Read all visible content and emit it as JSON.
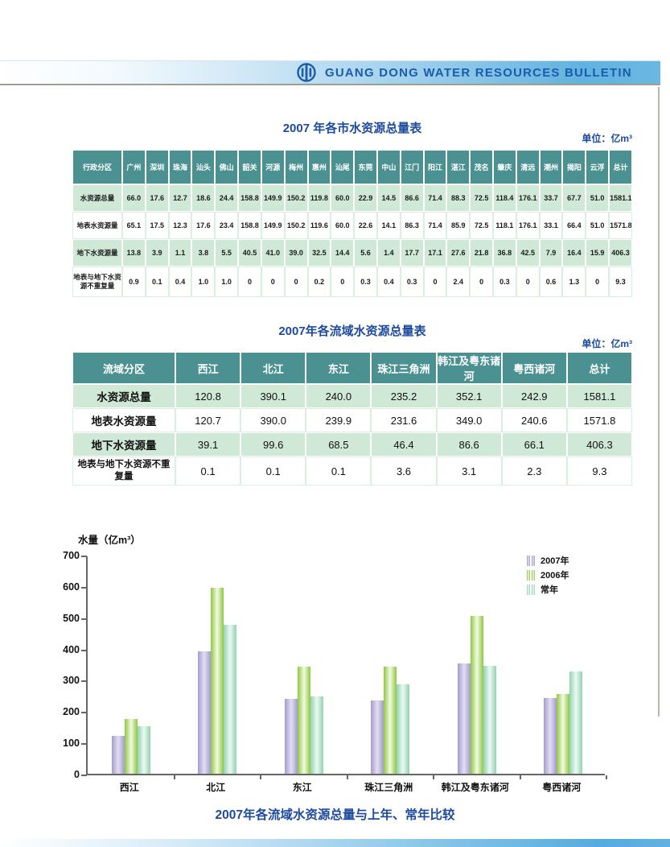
{
  "banner": {
    "title": "GUANG DONG WATER RESOURCES BULLETIN",
    "logo_icon": "water-emblem-icon",
    "accent_color": "#1a5cab"
  },
  "city_table": {
    "title": "2007 年各市水资源总量表",
    "unit": "单位：亿m³",
    "corner_header": "行政分区",
    "header_bg": "#4b9191",
    "row_alt_bg": "#d0e9d7",
    "columns": [
      "广州",
      "深圳",
      "珠海",
      "汕头",
      "佛山",
      "韶关",
      "河源",
      "梅州",
      "惠州",
      "汕尾",
      "东莞",
      "中山",
      "江门",
      "阳江",
      "湛江",
      "茂名",
      "肇庆",
      "清远",
      "潮州",
      "揭阳",
      "云浮",
      "总计"
    ],
    "rows": [
      {
        "label": "水资源总量",
        "values": [
          "66.0",
          "17.6",
          "12.7",
          "18.6",
          "24.4",
          "158.8",
          "149.9",
          "150.2",
          "119.8",
          "60.0",
          "22.9",
          "14.5",
          "86.6",
          "71.4",
          "88.3",
          "72.5",
          "118.4",
          "176.1",
          "33.7",
          "67.7",
          "51.0",
          "1581.1"
        ]
      },
      {
        "label": "地表水资源量",
        "values": [
          "65.1",
          "17.5",
          "12.3",
          "17.6",
          "23.4",
          "158.8",
          "149.9",
          "150.2",
          "119.6",
          "60.0",
          "22.6",
          "14.1",
          "86.3",
          "71.4",
          "85.9",
          "72.5",
          "118.1",
          "176.1",
          "33.1",
          "66.4",
          "51.0",
          "1571.8"
        ]
      },
      {
        "label": "地下水资源量",
        "values": [
          "13.8",
          "3.9",
          "1.1",
          "3.8",
          "5.5",
          "40.5",
          "41.0",
          "39.0",
          "32.5",
          "14.4",
          "5.6",
          "1.4",
          "17.7",
          "17.1",
          "27.6",
          "21.8",
          "36.8",
          "42.5",
          "7.9",
          "16.4",
          "15.9",
          "406.3"
        ]
      },
      {
        "label": "地表与地下水资源不重复量",
        "values": [
          "0.9",
          "0.1",
          "0.4",
          "1.0",
          "1.0",
          "0",
          "0",
          "0",
          "0.2",
          "0",
          "0.3",
          "0.4",
          "0.3",
          "0",
          "2.4",
          "0",
          "0.3",
          "0",
          "0.6",
          "1.3",
          "0",
          "9.3"
        ]
      }
    ]
  },
  "basin_table": {
    "title": "2007年各流域水资源总量表",
    "unit": "单位：亿m³",
    "corner_header": "流域分区",
    "header_bg": "#4b9191",
    "row_alt_bg": "#d0e9d7",
    "columns": [
      "西江",
      "北江",
      "东江",
      "珠江三角洲",
      "韩江及粤东诸河",
      "粤西诸河",
      "总计"
    ],
    "rows": [
      {
        "label": "水资源总量",
        "values": [
          "120.8",
          "390.1",
          "240.0",
          "235.2",
          "352.1",
          "242.9",
          "1581.1"
        ]
      },
      {
        "label": "地表水资源量",
        "values": [
          "120.7",
          "390.0",
          "239.9",
          "231.6",
          "349.0",
          "240.6",
          "1571.8"
        ]
      },
      {
        "label": "地下水资源量",
        "values": [
          "39.1",
          "99.6",
          "68.5",
          "46.4",
          "86.6",
          "66.1",
          "406.3"
        ]
      },
      {
        "label": "地表与地下水资源不重复量",
        "values": [
          "0.1",
          "0.1",
          "0.1",
          "3.6",
          "3.1",
          "2.3",
          "9.3"
        ]
      }
    ]
  },
  "chart_data": {
    "type": "bar",
    "title": "2007年各流域水资源总量与上年、常年比较",
    "ylabel": "水量（亿m³）",
    "xlabel": "",
    "ylim": [
      0,
      700
    ],
    "ytick_step": 100,
    "grid": false,
    "legend_position": "top-right",
    "categories": [
      "西江",
      "北江",
      "东江",
      "珠江三角洲",
      "韩江及粤东诸河",
      "粤西诸河"
    ],
    "series": [
      {
        "name": "2007年",
        "color_edge": "#a49cce",
        "color_light": "#e2dff2",
        "values": [
          120.8,
          390.1,
          240.0,
          235.2,
          352.1,
          242.9
        ]
      },
      {
        "name": "2006年",
        "color_edge": "#8ec93f",
        "color_light": "#f2fae4",
        "values": [
          175,
          595,
          342,
          342,
          505,
          255
        ]
      },
      {
        "name": "常年",
        "color_edge": "#93d2b2",
        "color_light": "#ecf9f2",
        "values": [
          152,
          477,
          246,
          286,
          345,
          328
        ]
      }
    ]
  }
}
